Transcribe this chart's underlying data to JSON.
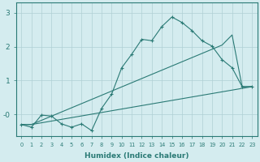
{
  "xlabel": "Humidex (Indice chaleur)",
  "bg_color": "#d4ecef",
  "line_color": "#2a7a75",
  "grid_color": "#b0d0d4",
  "xlim": [
    -0.5,
    23.5
  ],
  "ylim": [
    -0.65,
    3.3
  ],
  "xticks": [
    0,
    1,
    2,
    3,
    4,
    5,
    6,
    7,
    8,
    9,
    10,
    11,
    12,
    13,
    14,
    15,
    16,
    17,
    18,
    19,
    20,
    21,
    22,
    23
  ],
  "yticks": [
    0,
    1,
    2,
    3
  ],
  "ytick_labels": [
    "-0",
    "1",
    "2",
    "3"
  ],
  "line1_x": [
    0,
    1,
    2,
    3,
    4,
    5,
    6,
    7,
    8,
    9,
    10,
    11,
    12,
    13,
    14,
    15,
    16,
    17,
    18,
    19,
    20,
    21,
    22,
    23
  ],
  "line1_y": [
    -0.3,
    -0.38,
    -0.02,
    -0.05,
    -0.28,
    -0.38,
    -0.28,
    -0.48,
    0.18,
    0.6,
    1.38,
    1.78,
    2.22,
    2.18,
    2.6,
    2.88,
    2.72,
    2.48,
    2.18,
    2.02,
    1.62,
    1.38,
    0.82,
    0.82
  ],
  "line2_x": [
    0,
    1,
    23
  ],
  "line2_y": [
    -0.3,
    -0.3,
    0.82
  ],
  "line3_x": [
    0,
    1,
    20,
    21,
    22,
    23
  ],
  "line3_y": [
    -0.3,
    -0.3,
    2.05,
    2.35,
    0.82,
    0.82
  ]
}
